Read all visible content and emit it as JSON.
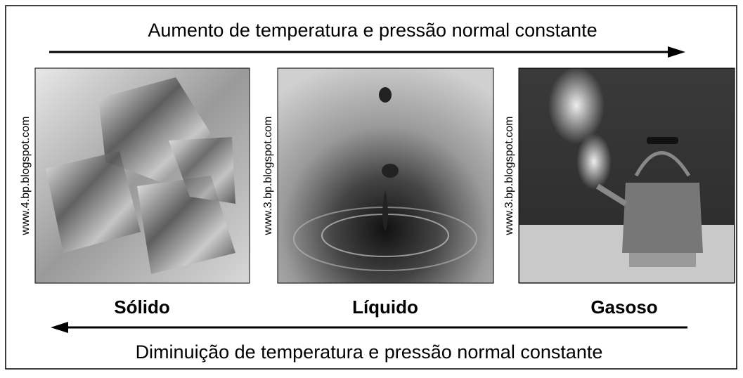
{
  "top_caption": "Aumento de temperatura e pressão normal constante",
  "bottom_caption": "Diminuição de temperatura e pressão normal constante",
  "panels": [
    {
      "credit": "www.4.bp.blogspot.com",
      "label": "Sólido"
    },
    {
      "credit": "www.3.bp.blogspot.com",
      "label": "Líquido"
    },
    {
      "credit": "www.3.bp.blogspot.com",
      "label": "Gasoso"
    }
  ]
}
